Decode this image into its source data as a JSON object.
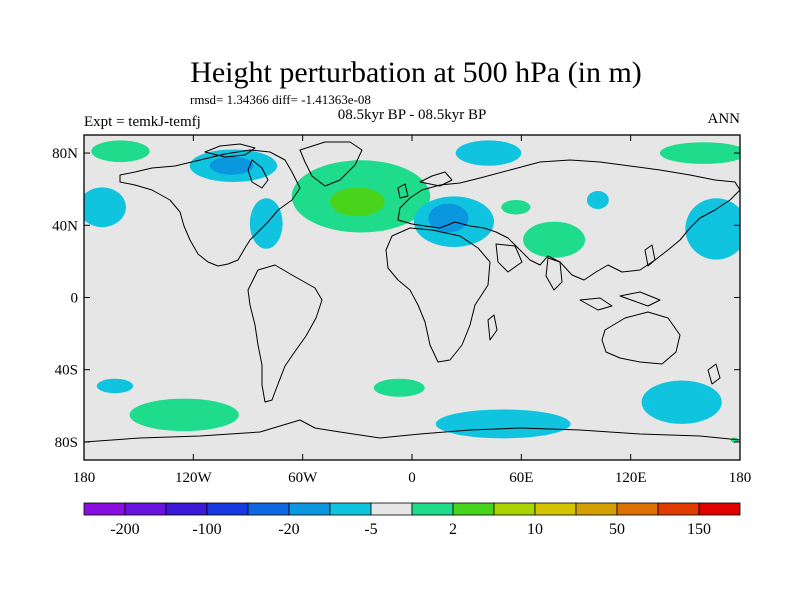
{
  "title": "Height perturbation at 500 hPa (in m)",
  "stats_line": "rmsd= 1.34366 diff= -1.41363e-08",
  "left_label": "Expt = temkJ-temfj",
  "center_label": "08.5kyr BP - 08.5kyr BP",
  "right_label": "ANN",
  "map": {
    "projection": "cylindrical-equidistant",
    "lon_range": [
      -180,
      180
    ],
    "lat_range": [
      -90,
      90
    ],
    "background_color": "#e6e6e6",
    "lat_ticks": [
      {
        "value": 80,
        "label": "80N"
      },
      {
        "value": 40,
        "label": "40N"
      },
      {
        "value": 0,
        "label": "0"
      },
      {
        "value": -40,
        "label": "40S"
      },
      {
        "value": -80,
        "label": "80S"
      }
    ],
    "lon_ticks": [
      {
        "value": -180,
        "label": "180"
      },
      {
        "value": -120,
        "label": "120W"
      },
      {
        "value": -60,
        "label": "60W"
      },
      {
        "value": 0,
        "label": "0"
      },
      {
        "value": 60,
        "label": "60E"
      },
      {
        "value": 120,
        "label": "120E"
      },
      {
        "value": 180,
        "label": "180"
      }
    ],
    "anomaly_regions": [
      {
        "name": "arctic-canada-positive",
        "color": "#1fdc8c",
        "lon": -160,
        "lat": 81,
        "rlon": 16,
        "rlat": 6
      },
      {
        "name": "canada-negative",
        "color": "#10c4e0",
        "lon": -98,
        "lat": 73,
        "rlon": 24,
        "rlat": 9
      },
      {
        "name": "canada-negative-core",
        "color": "#0b96e0",
        "lon": -99,
        "lat": 73,
        "rlon": 12,
        "rlat": 5
      },
      {
        "name": "north-pacific-negative",
        "color": "#10c4e0",
        "lon": -170,
        "lat": 50,
        "rlon": 13,
        "rlat": 11
      },
      {
        "name": "west-atlantic-negative",
        "color": "#10c4e0",
        "lon": -80,
        "lat": 41,
        "rlon": 9,
        "rlat": 14
      },
      {
        "name": "north-atlantic-positive",
        "color": "#1fdc8c",
        "lon": -28,
        "lat": 56,
        "rlon": 38,
        "rlat": 20
      },
      {
        "name": "north-atlantic-positive-core",
        "color": "#49d41c",
        "lon": -30,
        "lat": 53,
        "rlon": 15,
        "rlat": 8
      },
      {
        "name": "arctic-europe-negative",
        "color": "#10c4e0",
        "lon": 42,
        "lat": 80,
        "rlon": 18,
        "rlat": 7
      },
      {
        "name": "europe-negative",
        "color": "#10c4e0",
        "lon": 23,
        "lat": 42,
        "rlon": 22,
        "rlat": 14
      },
      {
        "name": "europe-negative-core",
        "color": "#0b96e0",
        "lon": 20,
        "lat": 44,
        "rlon": 11,
        "rlat": 8
      },
      {
        "name": "central-asia-positive-small",
        "color": "#1fdc8c",
        "lon": 57,
        "lat": 50,
        "rlon": 8,
        "rlat": 4
      },
      {
        "name": "central-asia-positive",
        "color": "#1fdc8c",
        "lon": 78,
        "lat": 32,
        "rlon": 17,
        "rlat": 10
      },
      {
        "name": "siberia-negative",
        "color": "#10c4e0",
        "lon": 102,
        "lat": 54,
        "rlon": 6,
        "rlat": 5
      },
      {
        "name": "arctic-siberia-positive",
        "color": "#1fdc8c",
        "lon": 160,
        "lat": 80,
        "rlon": 24,
        "rlat": 6
      },
      {
        "name": "north-pacific-east-negative",
        "color": "#10c4e0",
        "lon": 167,
        "lat": 38,
        "rlon": 17,
        "rlat": 17
      },
      {
        "name": "south-pacific-negative",
        "color": "#10c4e0",
        "lon": -163,
        "lat": -49,
        "rlon": 10,
        "rlat": 4
      },
      {
        "name": "south-pacific-positive",
        "color": "#1fdc8c",
        "lon": -125,
        "lat": -65,
        "rlon": 30,
        "rlat": 9
      },
      {
        "name": "south-atlantic-positive",
        "color": "#1fdc8c",
        "lon": -7,
        "lat": -50,
        "rlon": 14,
        "rlat": 5
      },
      {
        "name": "southern-ocean-negative",
        "color": "#10c4e0",
        "lon": 50,
        "lat": -70,
        "rlon": 37,
        "rlat": 8
      },
      {
        "name": "australia-south-negative",
        "color": "#10c4e0",
        "lon": 148,
        "lat": -58,
        "rlon": 22,
        "rlat": 12
      },
      {
        "name": "antarctic-coast-positive",
        "color": "#1fdc8c",
        "lon": 177,
        "lat": -79,
        "rlon": 2,
        "rlat": 1.5
      }
    ]
  },
  "colorbar": {
    "colors": [
      "#8a0ee0",
      "#6a12e0",
      "#3a1ad8",
      "#1838e0",
      "#0f68e0",
      "#0b96e0",
      "#10c4e0",
      "#e6e6e6",
      "#1fdc8c",
      "#49d41c",
      "#a8d400",
      "#d4c400",
      "#d4a000",
      "#dc7000",
      "#e03c00",
      "#e00000"
    ],
    "labels": [
      "-200",
      "-100",
      "-20",
      "-5",
      "2",
      "10",
      "50",
      "150"
    ]
  }
}
